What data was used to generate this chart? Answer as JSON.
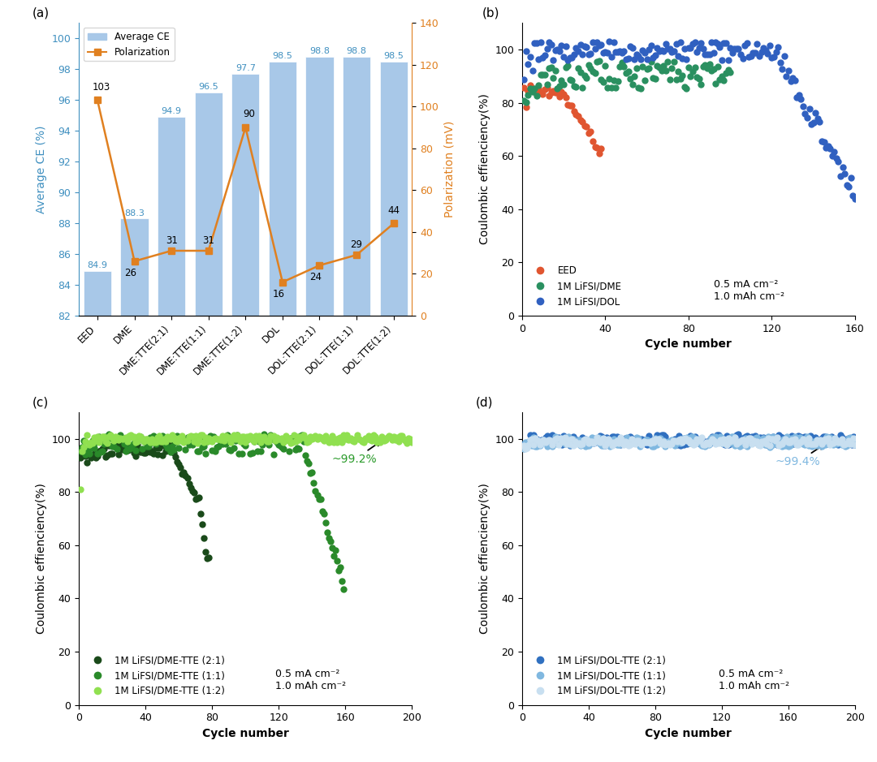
{
  "panel_a": {
    "categories": [
      "EED",
      "DME",
      "DME:TTE(2:1)",
      "DME:TTE(1:1)",
      "DME:TTE(1:2)",
      "DOL",
      "DOL:TTE(2:1)",
      "DOL:TTE(1:1)",
      "DOL:TTE(1:2)"
    ],
    "bar_values": [
      84.9,
      88.3,
      94.9,
      96.5,
      97.7,
      98.5,
      98.8,
      98.8,
      98.5
    ],
    "polarization": [
      103,
      26,
      31,
      31,
      90,
      16,
      24,
      29,
      44
    ],
    "bar_color": "#a8c8e8",
    "line_color": "#e08020",
    "ylim_left": [
      82,
      101
    ],
    "ylim_right": [
      0,
      140
    ],
    "ylabel_left": "Average CE (%)",
    "ylabel_right": "Polarization (mV)",
    "yticks_left": [
      82,
      84,
      86,
      88,
      90,
      92,
      94,
      96,
      98,
      100
    ],
    "yticks_right": [
      0,
      20,
      40,
      60,
      80,
      100,
      120,
      140
    ],
    "left_color": "#4090c0"
  },
  "panel_b": {
    "xlabel": "Cycle number",
    "ylabel": "Coulombic effienciency(%)",
    "xlim": [
      0,
      160
    ],
    "ylim": [
      0,
      110
    ],
    "yticks": [
      0,
      20,
      40,
      60,
      80,
      100
    ],
    "xticks": [
      0,
      40,
      80,
      120,
      160
    ],
    "legend": [
      "EED",
      "1M LiFSI/DME",
      "1M LiFSI/DOL"
    ],
    "colors": [
      "#e05530",
      "#2a9060",
      "#3060c0"
    ],
    "annotation": "0.5 mA cm⁻²\n1.0 mAh cm⁻²"
  },
  "panel_c": {
    "xlabel": "Cycle number",
    "ylabel": "Coulombic effienciency(%)",
    "xlim": [
      0,
      200
    ],
    "ylim": [
      0,
      110
    ],
    "yticks": [
      0,
      20,
      40,
      60,
      80,
      100
    ],
    "xticks": [
      0,
      40,
      80,
      120,
      160,
      200
    ],
    "legend": [
      "1M LiFSI/DME-TTE (2:1)",
      "1M LiFSI/DME-TTE (1:1)",
      "1M LiFSI/DME-TTE (1:2)"
    ],
    "colors": [
      "#1a4a1a",
      "#2a8a2a",
      "#90e050"
    ],
    "annotation": "0.5 mA cm⁻²\n1.0 mAh cm⁻²",
    "annotation2": "~99.2%",
    "annotation2_color": "#2a9a2a"
  },
  "panel_d": {
    "xlabel": "Cycle number",
    "ylabel": "Coulombic effienciency(%)",
    "xlim": [
      0,
      200
    ],
    "ylim": [
      0,
      110
    ],
    "yticks": [
      0,
      20,
      40,
      60,
      80,
      100
    ],
    "xticks": [
      0,
      40,
      80,
      120,
      160,
      200
    ],
    "legend": [
      "1M LiFSI/DOL-TTE (2:1)",
      "1M LiFSI/DOL-TTE (1:1)",
      "1M LiFSI/DOL-TTE (1:2)"
    ],
    "colors": [
      "#3070c0",
      "#80b8e0",
      "#c8dff0"
    ],
    "annotation": "0.5 mA cm⁻²\n1.0 mAh cm⁻²",
    "annotation2": "~99.4%",
    "annotation2_color": "#80b8e0",
    "refline_color": "#80b8e0"
  }
}
